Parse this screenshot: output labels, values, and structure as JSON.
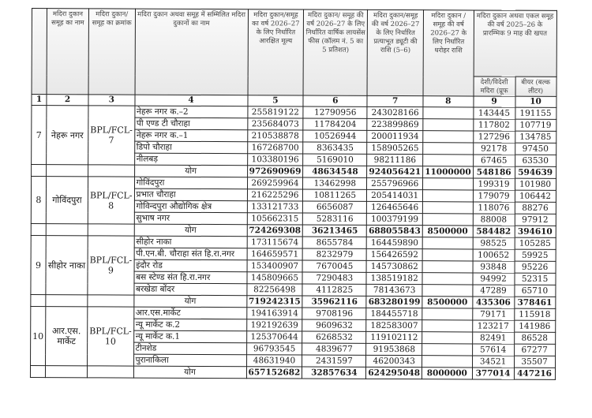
{
  "headers": {
    "c1": "",
    "c2": "मदिरा दुकान समूह का नाम",
    "c3": "मदिरा दुकान/ समूह का क्रमांक",
    "c4": "मदिरा दुकान अथवा समूह में सम्मिलित मदिरा दुकानों का नाम",
    "c5": "मदिरा दुकान/समूह का वर्ष 2026–27 के लिए निर्धारित आरक्षित मूल्य",
    "c6": "मदिरा दुकान/ समूह की वर्ष 2026–27 के लिए निर्धारित वार्षिक लायसेंस फीस (कॉलम नं. 5 का 5 प्रतिशत)",
    "c7": "मदिरा दुकान/समूह की वर्ष 2026–27 के लिए निर्धारित प्रत्याभूत ड्यूटी की राशि (5–6)",
    "c8": "मदिरा दुकान /समूह की वर्ष 2026–27 के लिए निर्धारित धरोहर राशि",
    "c9_10": "मदिरा दुकान अथवा एकल समूह की वर्ष 2025–26 के प्रारम्भिक 9 माह की खपत",
    "c9": "देशी/विदेशी मदिरा (प्रूफ",
    "c10": "बीयर (बल्क लीटर)"
  },
  "column_numbers": [
    "1",
    "2",
    "3",
    "4",
    "5",
    "6",
    "7",
    "8",
    "9",
    "10"
  ],
  "total_label": "योग",
  "groups": [
    {
      "sno": "7",
      "name": "नेहरू नगर",
      "code": "BPL/FCL-7",
      "shops": [
        [
          "नेहरू नगर क.–2",
          "255819122",
          "12790956",
          "243028166",
          "",
          "143445",
          "191155"
        ],
        [
          "पी एण्ड टी चौराहा",
          "235684073",
          "11784204",
          "223899869",
          "",
          "117802",
          "107719"
        ],
        [
          "नेहरू नगर क.–1",
          "210538878",
          "10526944",
          "200011934",
          "",
          "127296",
          "134785"
        ],
        [
          "डिपो चौराहा",
          "167268700",
          "8363435",
          "158905265",
          "",
          "92178",
          "97450"
        ],
        [
          "नीलबड़",
          "103380196",
          "5169010",
          "98211186",
          "",
          "67465",
          "63530"
        ]
      ],
      "total": [
        "972690969",
        "48634548",
        "924056421",
        "11000000",
        "548186",
        "594639"
      ]
    },
    {
      "sno": "8",
      "name": "गोविंदपुरा",
      "code": "BPL/FCL-8",
      "shops": [
        [
          "गोविंदपुरा",
          "269259964",
          "13462998",
          "255796966",
          "",
          "199319",
          "101980"
        ],
        [
          "प्रभात चौराहा",
          "216225296",
          "10811265",
          "205414031",
          "",
          "179079",
          "106442"
        ],
        [
          "गोविन्दपुरा औद्योगिक क्षेत्र",
          "133121733",
          "6656087",
          "126465646",
          "",
          "118076",
          "88276"
        ],
        [
          "सुभाष नगर",
          "105662315",
          "5283116",
          "100379199",
          "",
          "88008",
          "97912"
        ]
      ],
      "total": [
        "724269308",
        "36213465",
        "688055843",
        "8500000",
        "584482",
        "394610"
      ]
    },
    {
      "sno": "9",
      "name": "सीहोर नाका",
      "code": "BPL/FCL-9",
      "shops": [
        [
          "सीहोर नाका",
          "173115674",
          "8655784",
          "164459890",
          "",
          "98525",
          "105285"
        ],
        [
          "पी.एन.बी. चौराहा संत हि.रा.नगर",
          "164659571",
          "8232979",
          "156426592",
          "",
          "100652",
          "59925"
        ],
        [
          "इंदौर रोड",
          "153400907",
          "7670045",
          "145730862",
          "",
          "93848",
          "95226"
        ],
        [
          "बस स्टेण्ड संत हि.रा.नगर",
          "145809665",
          "7290483",
          "138519182",
          "",
          "94992",
          "52315"
        ],
        [
          "बरखेडा बोंदर",
          "82256498",
          "4112825",
          "78143673",
          "",
          "47289",
          "65710"
        ]
      ],
      "total": [
        "719242315",
        "35962116",
        "683280199",
        "8500000",
        "435306",
        "378461"
      ]
    },
    {
      "sno": "10",
      "name": "आर.एस. मार्केट",
      "code": "BPL/FCL-10",
      "shops": [
        [
          "आर.एस.मार्केट",
          "194163914",
          "9708196",
          "184455718",
          "",
          "79171",
          "115918"
        ],
        [
          "न्यू मार्केट क.2",
          "192192639",
          "9609632",
          "182583007",
          "",
          "123217",
          "141986"
        ],
        [
          "न्यू मार्केट क.1",
          "125370644",
          "6268532",
          "119102112",
          "",
          "82491",
          "86528"
        ],
        [
          "टीनशेड",
          "96793545",
          "4839677",
          "91953868",
          "",
          "57614",
          "67277"
        ],
        [
          "पुरानाकिला",
          "48631940",
          "2431597",
          "46200343",
          "",
          "34521",
          "35507"
        ]
      ],
      "total": [
        "657152682",
        "32857634",
        "624295048",
        "8000000",
        "377014",
        "447216"
      ]
    }
  ]
}
